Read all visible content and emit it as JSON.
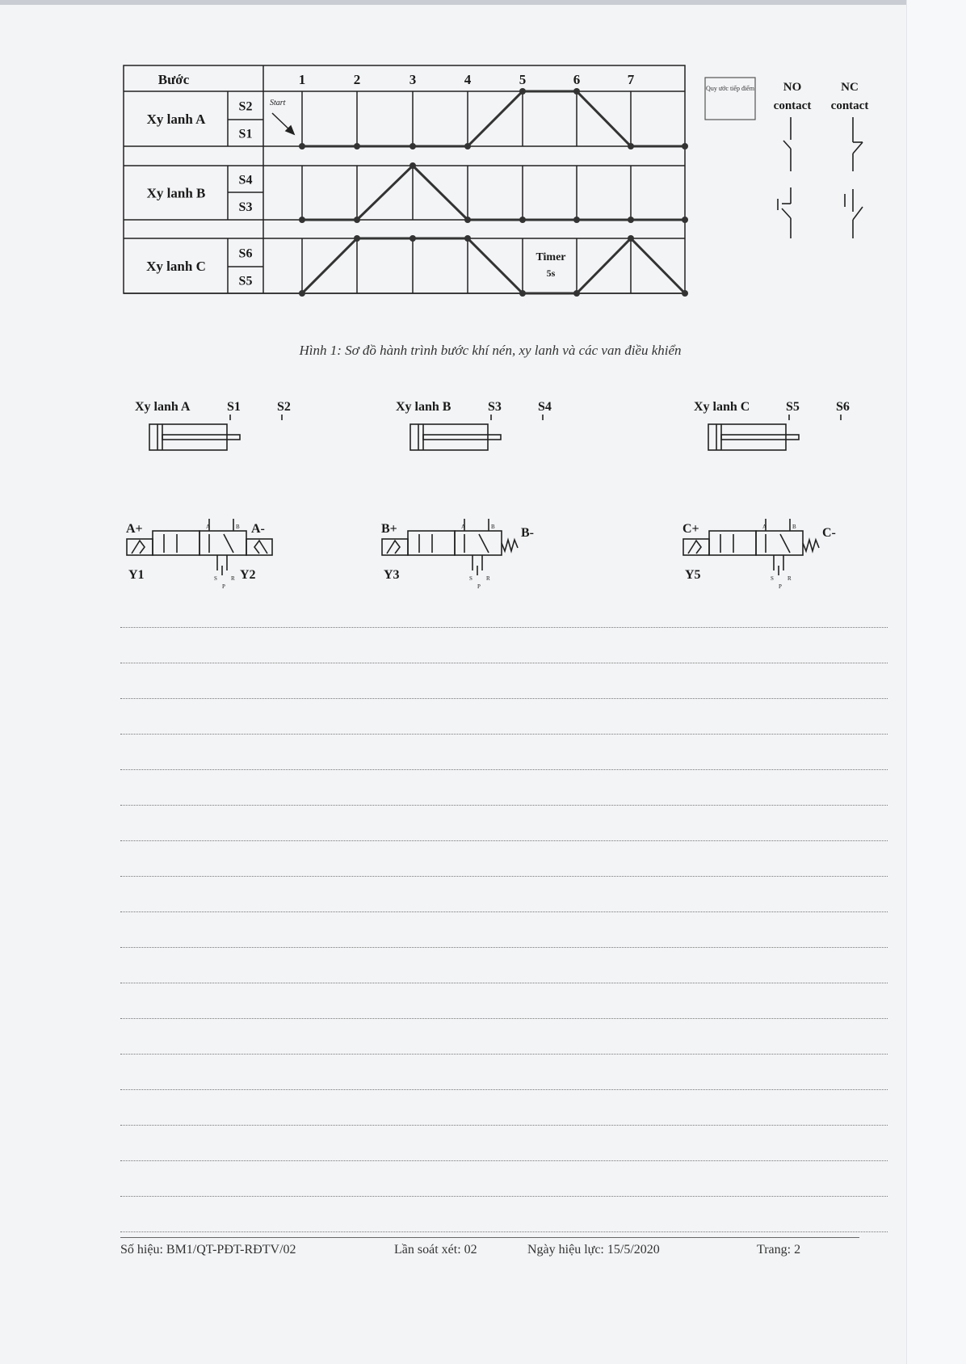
{
  "diagram": {
    "header_label": "Bước",
    "steps": [
      "1",
      "2",
      "3",
      "4",
      "5",
      "6",
      "7"
    ],
    "start_label": "Start",
    "timer_label": "Timer",
    "timer_value": "5s",
    "cylinders": [
      {
        "name": "Xy lanh A",
        "upper_sensor": "S2",
        "lower_sensor": "S1",
        "levels": [
          0,
          0,
          0,
          0,
          1,
          1,
          0,
          0
        ]
      },
      {
        "name": "Xy lanh B",
        "upper_sensor": "S4",
        "lower_sensor": "S3",
        "levels": [
          0,
          0,
          1,
          0,
          0,
          0,
          0,
          0
        ]
      },
      {
        "name": "Xy lanh C",
        "upper_sensor": "S6",
        "lower_sensor": "S5",
        "levels": [
          0,
          1,
          1,
          1,
          0,
          0,
          1,
          0
        ]
      }
    ]
  },
  "legend": {
    "box_label": "Quy ước tiếp điểm",
    "no_label": "NO",
    "nc_label": "NC",
    "contact_label": "contact"
  },
  "caption": "Hình 1: Sơ đồ hành trình bước khí nén, xy lanh và các van điều khiển",
  "cylinder_symbols": [
    {
      "name": "Xy lanh A",
      "s_left": "S1",
      "s_right": "S2"
    },
    {
      "name": "Xy lanh B",
      "s_left": "S3",
      "s_right": "S4"
    },
    {
      "name": "Xy lanh C",
      "s_left": "S5",
      "s_right": "S6"
    }
  ],
  "valves": [
    {
      "plus": "A+",
      "minus": "A-",
      "coil_left": "Y1",
      "coil_right": "Y2",
      "ports": [
        "A",
        "B",
        "S",
        "P",
        "R"
      ]
    },
    {
      "plus": "B+",
      "minus": "B-",
      "coil_left": "Y3",
      "coil_right": "",
      "ports": [
        "A",
        "B",
        "S",
        "P",
        "R"
      ]
    },
    {
      "plus": "C+",
      "minus": "C-",
      "coil_left": "Y5",
      "coil_right": "",
      "ports": [
        "A",
        "B",
        "S",
        "P",
        "R"
      ]
    }
  ],
  "footer": {
    "doc_code": "Số hiệu: BM1/QT-PĐT-RĐTV/02",
    "revision": "Lần soát xét: 02",
    "effective_date": "Ngày hiệu lực: 15/5/2020",
    "page": "Trang: 2"
  }
}
